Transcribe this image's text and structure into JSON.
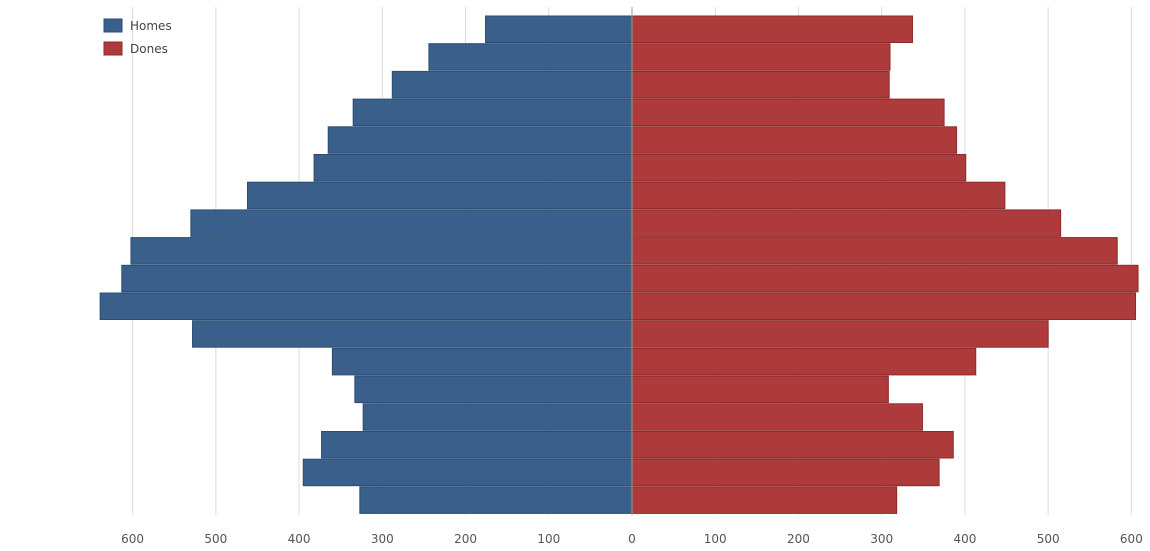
{
  "chart_data": {
    "type": "bar",
    "orientation": "horizontal",
    "layout": "population-pyramid",
    "series": [
      {
        "name": "Homes",
        "side": "left",
        "color": "#3a5f8a",
        "values": [
          176,
          244,
          288,
          335,
          365,
          382,
          462,
          530,
          602,
          613,
          639,
          528,
          360,
          333,
          323,
          373,
          395,
          327
        ]
      },
      {
        "name": "Dones",
        "side": "right",
        "color": "#ad3b3b",
        "values": [
          337,
          310,
          309,
          375,
          390,
          401,
          448,
          515,
          583,
          608,
          605,
          500,
          413,
          308,
          349,
          386,
          369,
          318
        ]
      }
    ],
    "x_ticks": [
      "600",
      "500",
      "400",
      "300",
      "200",
      "100",
      "0",
      "100",
      "200",
      "300",
      "400",
      "500",
      "600"
    ],
    "xlim": [
      -600,
      600
    ],
    "grid": "vertical",
    "legend_position": "top-left"
  }
}
